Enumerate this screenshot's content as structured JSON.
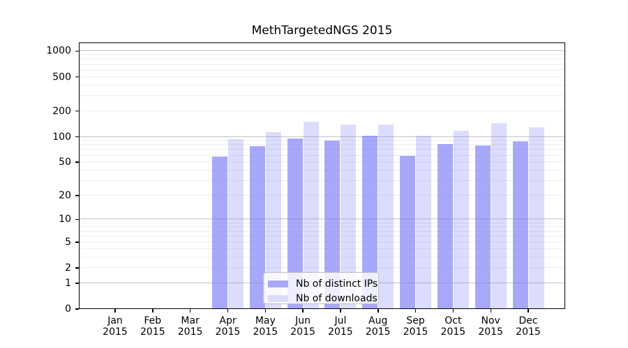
{
  "page": {
    "background": "#ffffff"
  },
  "chart_data": {
    "type": "bar",
    "title": "MethTargetedNGS 2015",
    "categories": [
      "Jan 2015",
      "Feb 2015",
      "Mar 2015",
      "Apr 2015",
      "May 2015",
      "Jun 2015",
      "Jul 2015",
      "Aug 2015",
      "Sep 2015",
      "Oct 2015",
      "Nov 2015",
      "Dec 2015"
    ],
    "series": [
      {
        "name": "Nb of distinct IPs",
        "color": "#a8a8fa",
        "fill": "rgba(119,119,247,0.64)",
        "values": [
          0,
          0,
          0,
          58,
          78,
          96,
          91,
          103,
          60,
          82,
          79,
          89
        ]
      },
      {
        "name": "Nb of downloads",
        "color": "#dcdcfa",
        "fill": "rgba(119,119,247,0.26)",
        "values": [
          0,
          0,
          0,
          94,
          112,
          149,
          139,
          139,
          103,
          117,
          145,
          128
        ]
      }
    ],
    "xlabel": "",
    "ylabel": "",
    "yticks": [
      0,
      1,
      2,
      5,
      10,
      20,
      50,
      100,
      200,
      500,
      1000
    ],
    "yscale": "log1p",
    "ylim": [
      0,
      1250
    ],
    "grid": "on",
    "legend_position": "lower center",
    "axis_color": "#000000",
    "grid_major_color": "#c3c3c3",
    "grid_minor_color": "#ededed"
  }
}
